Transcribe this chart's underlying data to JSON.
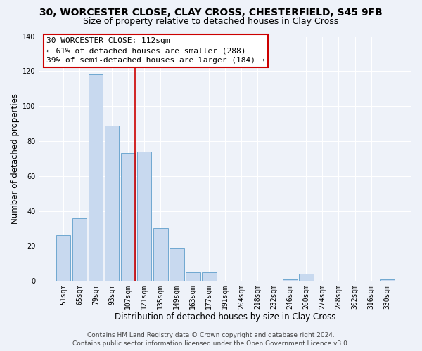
{
  "title": "30, WORCESTER CLOSE, CLAY CROSS, CHESTERFIELD, S45 9FB",
  "subtitle": "Size of property relative to detached houses in Clay Cross",
  "xlabel": "Distribution of detached houses by size in Clay Cross",
  "ylabel": "Number of detached properties",
  "bar_labels": [
    "51sqm",
    "65sqm",
    "79sqm",
    "93sqm",
    "107sqm",
    "121sqm",
    "135sqm",
    "149sqm",
    "163sqm",
    "177sqm",
    "191sqm",
    "204sqm",
    "218sqm",
    "232sqm",
    "246sqm",
    "260sqm",
    "274sqm",
    "288sqm",
    "302sqm",
    "316sqm",
    "330sqm"
  ],
  "bar_values": [
    26,
    36,
    118,
    89,
    73,
    74,
    30,
    19,
    5,
    5,
    0,
    0,
    0,
    0,
    1,
    4,
    0,
    0,
    0,
    0,
    1
  ],
  "bar_color": "#c8d9ef",
  "bar_edge_color": "#6fa8d0",
  "vline_color": "#cc0000",
  "annotation_lines": [
    "30 WORCESTER CLOSE: 112sqm",
    "← 61% of detached houses are smaller (288)",
    "39% of semi-detached houses are larger (184) →"
  ],
  "ylim": [
    0,
    140
  ],
  "yticks": [
    0,
    20,
    40,
    60,
    80,
    100,
    120,
    140
  ],
  "footer_line1": "Contains HM Land Registry data © Crown copyright and database right 2024.",
  "footer_line2": "Contains public sector information licensed under the Open Government Licence v3.0.",
  "background_color": "#eef2f9",
  "grid_color": "#ffffff",
  "title_fontsize": 10,
  "subtitle_fontsize": 9,
  "axis_label_fontsize": 8.5,
  "tick_fontsize": 7,
  "footer_fontsize": 6.5,
  "anno_fontsize": 8
}
